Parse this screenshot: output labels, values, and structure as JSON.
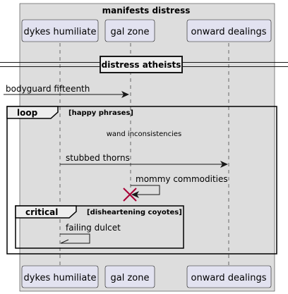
{
  "box": {
    "title": "manifests distress",
    "fill": "#dddddd",
    "participants": [
      "dykes humiliate",
      "gal zone",
      "onward dealings"
    ]
  },
  "divider": {
    "label": "distress atheists"
  },
  "messages": [
    {
      "label": "bodyguard fifteenth"
    },
    {
      "label": "stubbed thorns"
    },
    {
      "label": "mommy commodities"
    },
    {
      "label": "failing dulcet"
    }
  ],
  "loop": {
    "keyword": "loop",
    "guard": "[happy phrases]"
  },
  "delay": {
    "label": "wand inconsistencies"
  },
  "critical": {
    "keyword": "critical",
    "guard": "[disheartening coyotes]"
  },
  "colors": {
    "participant_fill": "#e2e2f0",
    "participant_border": "#181818",
    "lifeline": "#181818",
    "destroy": "#a80036",
    "box_fill": "#dddddd"
  }
}
